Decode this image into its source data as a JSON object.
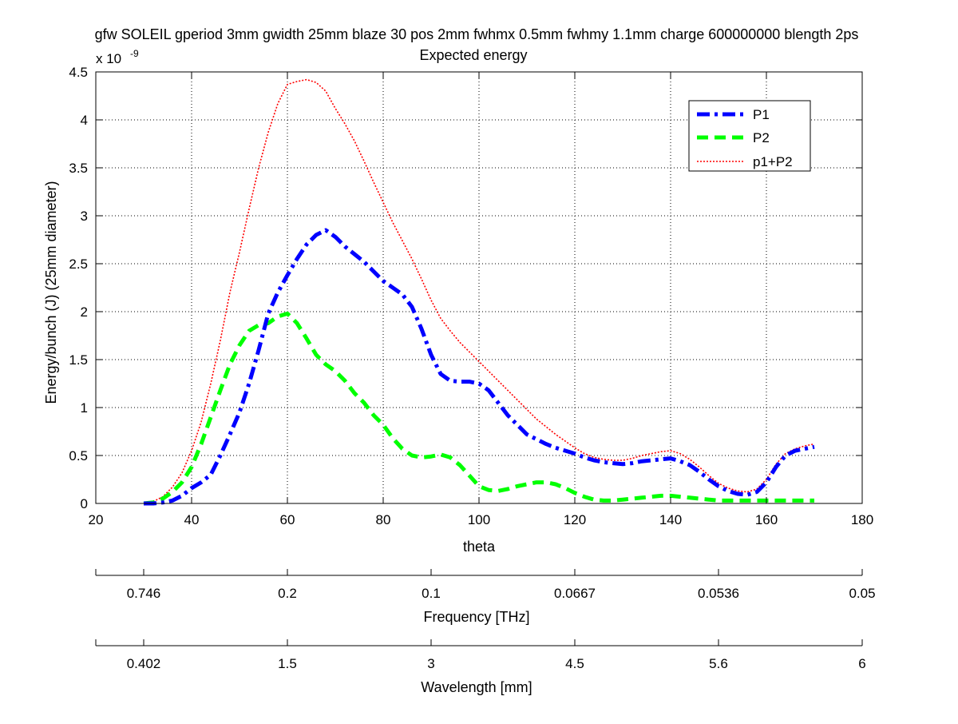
{
  "chart_data": {
    "type": "line",
    "title": "gfw SOLEIL gperiod 3mm gwidth 25mm blaze 30 pos 2mm fwhmx 0.5mm fwhmy 1.1mm charge 600000000 blength 2ps",
    "subtitle": "Expected energy",
    "xlabel": "theta",
    "ylabel": "Energy/bunch (J) (25mm diameter)",
    "y_exponent_label": "x 10",
    "y_exponent_power": "-9",
    "xlim": [
      20,
      180
    ],
    "ylim": [
      0,
      4.5
    ],
    "x_ticks": [
      20,
      40,
      60,
      80,
      100,
      120,
      140,
      160,
      180
    ],
    "x_tick_labels": [
      "20",
      "40",
      "60",
      "80",
      "100",
      "120",
      "140",
      "160",
      "180"
    ],
    "y_ticks": [
      0,
      0.5,
      1,
      1.5,
      2,
      2.5,
      3,
      3.5,
      4,
      4.5
    ],
    "y_tick_labels": [
      "0",
      "0.5",
      "1",
      "1.5",
      "2",
      "2.5",
      "3",
      "3.5",
      "4",
      "4.5"
    ],
    "grid": true,
    "legend_position": "top-right",
    "series": [
      {
        "name": "P1",
        "color": "#0000ff",
        "style": "dashdot",
        "x": [
          30,
          32,
          34,
          36,
          38,
          40,
          42,
          44,
          46,
          48,
          50,
          52,
          54,
          56,
          58,
          60,
          62,
          64,
          66,
          68,
          70,
          72,
          74,
          76,
          78,
          80,
          82,
          84,
          86,
          88,
          90,
          92,
          94,
          96,
          98,
          100,
          102,
          104,
          106,
          108,
          110,
          112,
          114,
          116,
          118,
          120,
          122,
          124,
          126,
          128,
          130,
          132,
          134,
          136,
          138,
          140,
          142,
          144,
          146,
          148,
          150,
          152,
          154,
          156,
          158,
          160,
          162,
          164,
          166,
          168,
          170
        ],
        "values": [
          0.0,
          0.0,
          0.01,
          0.03,
          0.08,
          0.16,
          0.22,
          0.3,
          0.5,
          0.72,
          0.95,
          1.25,
          1.6,
          1.98,
          2.2,
          2.38,
          2.55,
          2.7,
          2.8,
          2.85,
          2.78,
          2.68,
          2.6,
          2.52,
          2.42,
          2.32,
          2.25,
          2.18,
          2.05,
          1.82,
          1.55,
          1.35,
          1.28,
          1.27,
          1.27,
          1.25,
          1.18,
          1.05,
          0.92,
          0.82,
          0.72,
          0.67,
          0.62,
          0.58,
          0.55,
          0.52,
          0.48,
          0.45,
          0.43,
          0.42,
          0.41,
          0.42,
          0.44,
          0.45,
          0.46,
          0.47,
          0.44,
          0.4,
          0.33,
          0.25,
          0.18,
          0.13,
          0.1,
          0.09,
          0.12,
          0.22,
          0.38,
          0.5,
          0.55,
          0.57,
          0.59
        ]
      },
      {
        "name": "P2",
        "color": "#00ff00",
        "style": "dashed",
        "x": [
          30,
          32,
          34,
          36,
          38,
          40,
          42,
          44,
          46,
          48,
          50,
          52,
          54,
          56,
          58,
          60,
          62,
          64,
          66,
          68,
          70,
          72,
          74,
          76,
          78,
          80,
          82,
          84,
          86,
          88,
          90,
          92,
          94,
          96,
          98,
          100,
          102,
          104,
          106,
          108,
          110,
          112,
          114,
          116,
          118,
          120,
          122,
          124,
          126,
          128,
          130,
          132,
          134,
          136,
          138,
          140,
          142,
          144,
          146,
          148,
          150,
          152,
          154,
          156,
          158,
          160,
          162,
          164,
          166,
          168,
          170
        ],
        "values": [
          0.0,
          0.01,
          0.05,
          0.12,
          0.22,
          0.38,
          0.62,
          0.9,
          1.18,
          1.45,
          1.65,
          1.8,
          1.86,
          1.88,
          1.95,
          1.98,
          1.88,
          1.72,
          1.55,
          1.45,
          1.38,
          1.28,
          1.15,
          1.05,
          0.92,
          0.82,
          0.68,
          0.57,
          0.5,
          0.48,
          0.49,
          0.51,
          0.48,
          0.4,
          0.29,
          0.18,
          0.14,
          0.13,
          0.15,
          0.18,
          0.2,
          0.22,
          0.22,
          0.2,
          0.16,
          0.11,
          0.07,
          0.04,
          0.03,
          0.03,
          0.04,
          0.05,
          0.06,
          0.07,
          0.08,
          0.08,
          0.07,
          0.06,
          0.05,
          0.04,
          0.03,
          0.03,
          0.03,
          0.03,
          0.03,
          0.03,
          0.03,
          0.03,
          0.03,
          0.03,
          0.03
        ]
      },
      {
        "name": "p1+P2",
        "color": "#ff0000",
        "style": "dotted",
        "x": [
          30,
          32,
          34,
          36,
          38,
          40,
          42,
          44,
          46,
          48,
          50,
          52,
          54,
          56,
          58,
          60,
          62,
          64,
          66,
          68,
          70,
          72,
          74,
          76,
          78,
          80,
          82,
          84,
          86,
          88,
          90,
          92,
          94,
          96,
          98,
          100,
          102,
          104,
          106,
          108,
          110,
          112,
          114,
          116,
          118,
          120,
          122,
          124,
          126,
          128,
          130,
          132,
          134,
          136,
          138,
          140,
          142,
          144,
          146,
          148,
          150,
          152,
          154,
          156,
          158,
          160,
          162,
          164,
          166,
          168,
          170
        ],
        "values": [
          0.0,
          0.02,
          0.07,
          0.17,
          0.32,
          0.55,
          0.85,
          1.25,
          1.7,
          2.2,
          2.62,
          3.07,
          3.5,
          3.87,
          4.17,
          4.37,
          4.4,
          4.42,
          4.39,
          4.3,
          4.12,
          3.96,
          3.78,
          3.57,
          3.35,
          3.14,
          2.93,
          2.74,
          2.55,
          2.34,
          2.12,
          1.93,
          1.8,
          1.68,
          1.58,
          1.48,
          1.38,
          1.28,
          1.18,
          1.08,
          0.98,
          0.88,
          0.8,
          0.72,
          0.65,
          0.58,
          0.52,
          0.48,
          0.46,
          0.45,
          0.45,
          0.47,
          0.5,
          0.52,
          0.54,
          0.55,
          0.52,
          0.46,
          0.38,
          0.29,
          0.21,
          0.16,
          0.13,
          0.12,
          0.15,
          0.25,
          0.41,
          0.52,
          0.57,
          0.6,
          0.62
        ]
      }
    ],
    "secondary_axes": [
      {
        "label": "Frequency [THz]",
        "ticks_theta": [
          30,
          60,
          90,
          120,
          150,
          180
        ],
        "tick_labels": [
          "0.746",
          "0.2",
          "0.1",
          "0.0667",
          "0.0536",
          "0.05"
        ]
      },
      {
        "label": "Wavelength [mm]",
        "ticks_theta": [
          30,
          60,
          90,
          120,
          150,
          180
        ],
        "tick_labels": [
          "0.402",
          "1.5",
          "3",
          "4.5",
          "5.6",
          "6"
        ]
      }
    ]
  }
}
